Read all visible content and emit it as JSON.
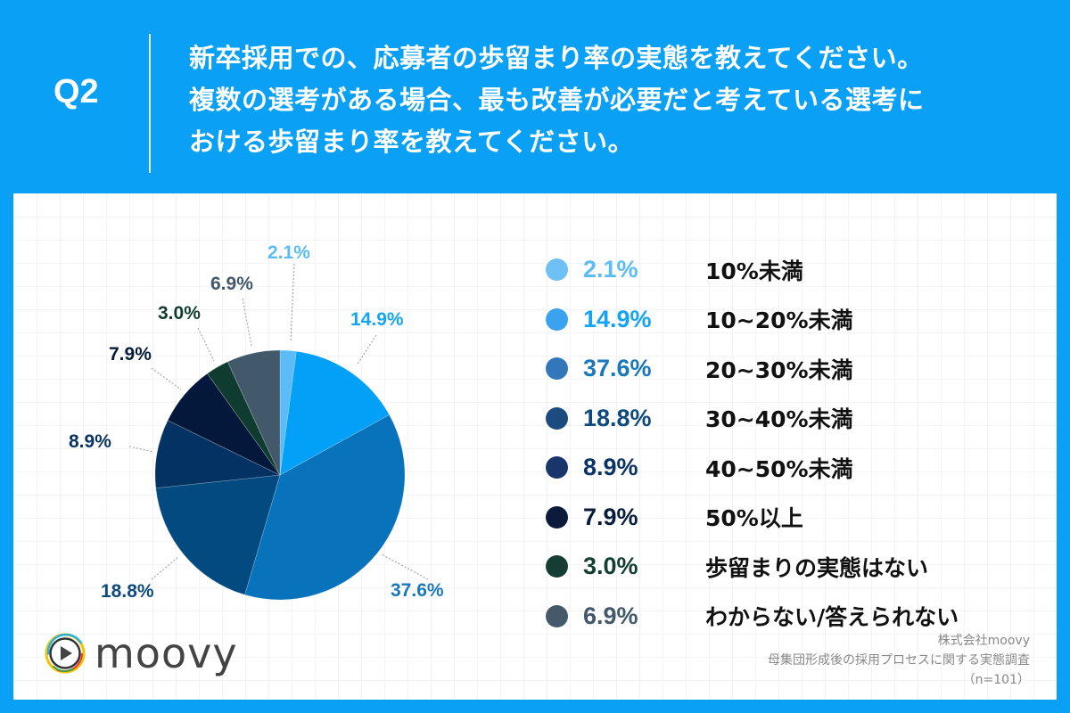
{
  "header": {
    "q_label": "Q2",
    "question_lines": [
      "新卒採用での、応募者の歩留まり率の実態を教えてください。",
      "複数の選考がある場合、最も改善が必要だと考えている選考に",
      "おける歩留まり率を教えてください。"
    ],
    "bg_color": "#0aa0f5"
  },
  "chart_data": {
    "type": "pie",
    "title": "新卒採用での、応募者の歩留まり率の実態を教えてください。複数の選考がある場合、最も改善が必要だと考えている選考における歩留まり率を教えてください。",
    "start_angle": "top (12 o'clock), clockwise",
    "categories": [
      "10%未満",
      "10~20%未満",
      "20~30%未満",
      "30~40%未満",
      "40~50%未満",
      "50%以上",
      "歩留まりの実態はない",
      "わからない/答えられない"
    ],
    "values": [
      2.1,
      14.9,
      37.6,
      18.8,
      8.9,
      7.9,
      3.0,
      6.9
    ],
    "labels": [
      "2.1%",
      "14.9%",
      "37.6%",
      "18.8%",
      "8.9%",
      "7.9%",
      "3.0%",
      "6.9%"
    ],
    "slice_colors": [
      "#5bbcf7",
      "#03a0f7",
      "#0873bb",
      "#034a80",
      "#043262",
      "#03183a",
      "#0f3b30",
      "#42596c"
    ],
    "label_colors": [
      "#5bbcf7",
      "#15a4f2",
      "#1a78ba",
      "#0e4a7c",
      "#0a3366",
      "#071c3a",
      "#123d30",
      "#42596c"
    ],
    "legend_dot_colors": [
      "#6fc1f5",
      "#3ba2f0",
      "#3377ba",
      "#1c4b80",
      "#18366c",
      "#0c1a3c",
      "#153d33",
      "#45596b"
    ],
    "legend_position": "right",
    "n": 101
  },
  "legend": {
    "items": [
      {
        "pct": "2.1%",
        "label": "10%未満"
      },
      {
        "pct": "14.9%",
        "label": "10~20%未満"
      },
      {
        "pct": "37.6%",
        "label": "20~30%未満"
      },
      {
        "pct": "18.8%",
        "label": "30~40%未満"
      },
      {
        "pct": "8.9%",
        "label": "40~50%未満"
      },
      {
        "pct": "7.9%",
        "label": "50%以上"
      },
      {
        "pct": "3.0%",
        "label": "歩留まりの実態はない"
      },
      {
        "pct": "6.9%",
        "label": "わからない/答えられない"
      }
    ]
  },
  "footer": {
    "logo_text": "moovy",
    "credit_lines": [
      "株式会社moovy",
      "母集団形成後の採用プロセスに関する実態調査",
      "（n=101）"
    ]
  }
}
